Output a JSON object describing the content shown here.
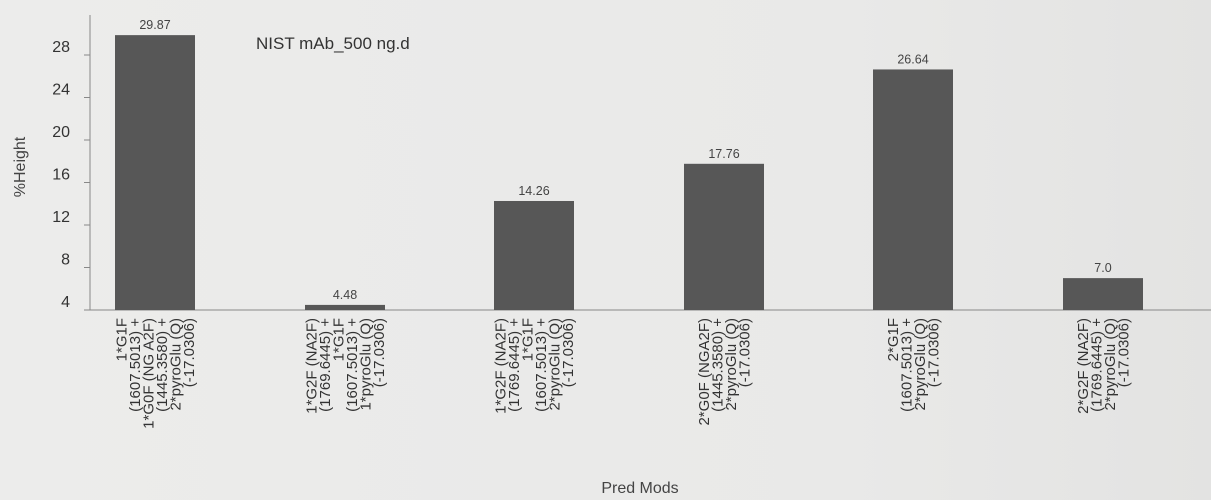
{
  "chart_data": {
    "type": "bar",
    "title": "NIST mAb_500 ng.d",
    "xlabel": "Pred Mods",
    "ylabel": "%Height",
    "ylim": [
      4,
      30
    ],
    "yticks": [
      4,
      8,
      12,
      16,
      20,
      24,
      28
    ],
    "grid": false,
    "bar_color": "#575757",
    "categories": [
      [
        "1*G1F",
        "(1607.5013) +",
        "1*G0F (NG A2F)",
        "(1445.3580) +",
        "2*pyroGlu (Q)",
        "(-17.0306)"
      ],
      [
        "1*G2F (NA2F)",
        "(1769.6445) +",
        "1*G1F",
        "(1607.5013) +",
        "1*pyroGlu (Q)",
        "(-17.0306)"
      ],
      [
        "1*G2F (NA2F)",
        "(1769.6445) +",
        "1*G1F",
        "(1607.5013) +",
        "2*pyroGlu (Q)",
        "(-17.0306)"
      ],
      [
        "2*G0F (NGA2F)",
        "(1445.3580) +",
        "2*pyroGlu (Q)",
        "(-17.0306)"
      ],
      [
        "2*G1F",
        "(1607.5013) +",
        "2*pyroGlu (Q)",
        "(-17.0306)"
      ],
      [
        "2*G2F (NA2F)",
        "(1769.6445) +",
        "2*pyroGlu (Q)",
        "(-17.0306)"
      ]
    ],
    "values": [
      29.87,
      4.48,
      14.26,
      17.76,
      26.64,
      7.0
    ],
    "data_labels": [
      "29.87",
      "4.48",
      "14.26",
      "17.76",
      "26.64",
      "7.0"
    ]
  }
}
